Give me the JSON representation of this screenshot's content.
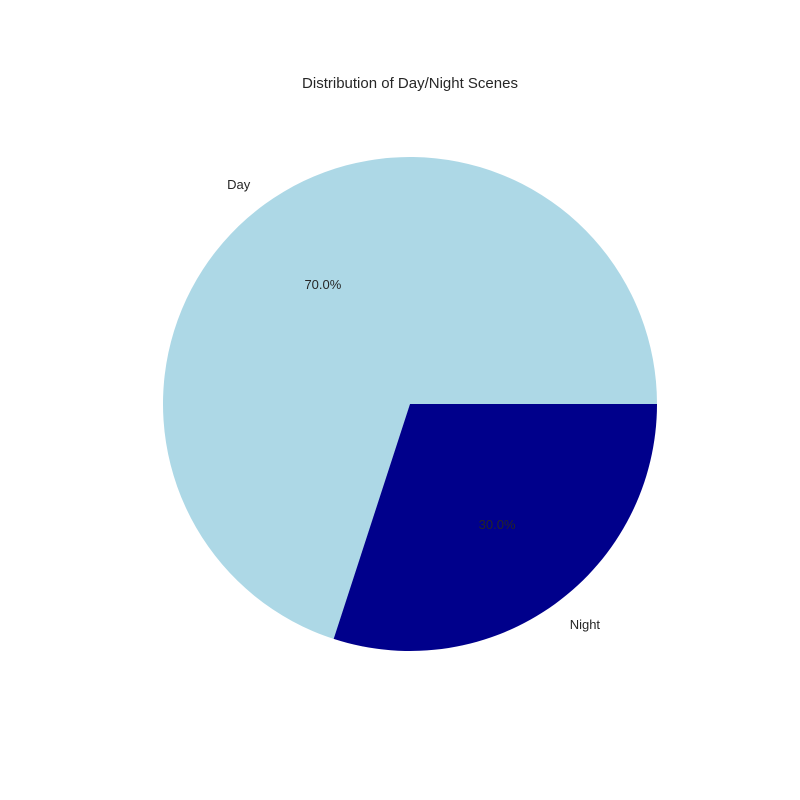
{
  "chart_data": {
    "type": "pie",
    "title": "Distribution of Day/Night Scenes",
    "categories": [
      "Day",
      "Night"
    ],
    "values": [
      70,
      30
    ],
    "percent_labels": [
      "70.0%",
      "30.0%"
    ],
    "colors": [
      "#add8e6",
      "#00008b"
    ],
    "start_angle_deg": 0,
    "direction": "counterclockwise"
  }
}
